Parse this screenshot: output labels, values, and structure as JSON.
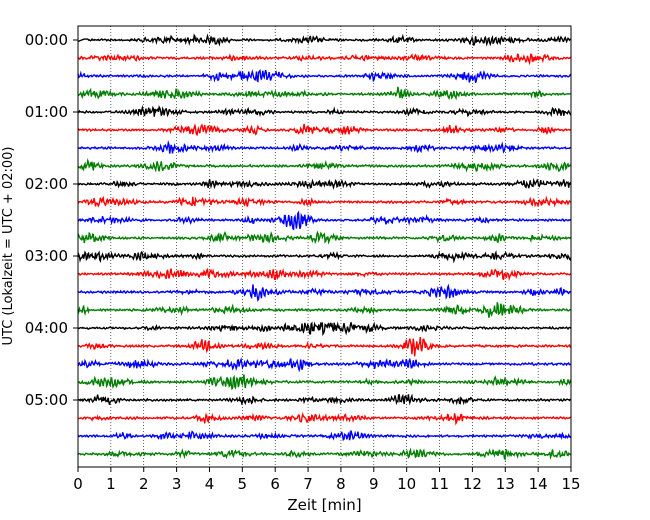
{
  "chart_data": {
    "type": "line",
    "title": "",
    "xlabel": "Zeit  [min]",
    "ylabel": "UTC (Lokalzeit = UTC + 02:00)",
    "xlim": [
      0,
      15
    ],
    "x_ticks": [
      "0",
      "1",
      "2",
      "3",
      "4",
      "5",
      "6",
      "7",
      "8",
      "9",
      "10",
      "11",
      "12",
      "13",
      "14",
      "15"
    ],
    "y_ticks": [
      "00:00",
      "01:00",
      "02:00",
      "03:00",
      "04:00",
      "05:00"
    ],
    "trace_interval_min": 15,
    "trace_count": 24,
    "trace_colors": [
      "#000000",
      "#ff0000",
      "#0000ff",
      "#007f00"
    ],
    "grid": {
      "x": true,
      "y": false,
      "style": "dotted"
    },
    "legend": "none"
  }
}
